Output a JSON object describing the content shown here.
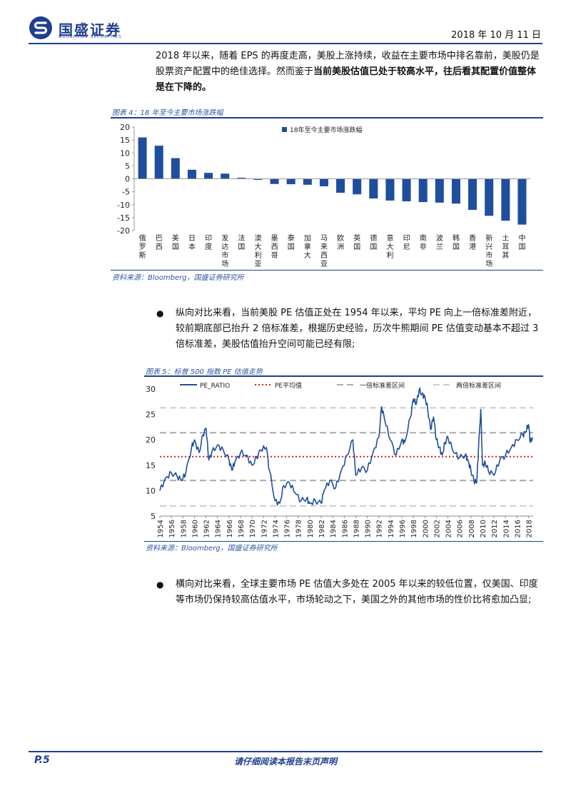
{
  "header": {
    "logo_name": "国盛证券",
    "logo_sub": "GUOSHENG SECURITIES",
    "date": "2018 年 10 月 11 日"
  },
  "paragraph1": {
    "normal": "2018 年以来，随着 EPS 的再度走高，美股上涨持续，收益在主要市场中排名靠前，美股仍是股票资产配置中的绝佳选择。然而鉴于",
    "bold": "当前美股估值已处于较高水平，往后看其配置价值整体是在下降的。"
  },
  "figure4": {
    "title": "图表 4：18 年至今主要市场涨跌幅",
    "source": "资料来源：Bloomberg，国盛证券研究所"
  },
  "bullet1": "纵向对比来看，当前美股 PE 估值正处在 1954 年以来，平均 PE 向上一倍标准差附近，较前期底部已抬升 2 倍标准差，根据历史经验，历次牛熊期间 PE 估值变动基本不超过 3 倍标准差，美股估值抬升空间可能已经有限;",
  "figure5": {
    "title": "图表 5：标普 500 指数 PE 估值走势",
    "source": "资料来源：Bloomberg，国盛证券研究所"
  },
  "bullet2": "横向对比来看，全球主要市场 PE 估值大多处在 2005 年以来的较低位置，仅美国、印度等市场仍保持较高估值水平，市场轮动之下，美国之外的其他市场的性价比将愈加凸显;",
  "footer": {
    "page": "P.5",
    "note": "请仔细阅读本报告末页声明"
  },
  "colors": {
    "brand": "#1f3f8f",
    "bar": "#1f4e9c",
    "mean_line": "#d32020",
    "band": "#aaaaaa"
  },
  "chart_data": [
    {
      "type": "bar",
      "legend": "18年至今主要市场涨跌幅",
      "categories": [
        "俄罗斯",
        "巴西",
        "美国",
        "日本",
        "印度",
        "发达市场",
        "法国",
        "澳大利亚",
        "墨西哥",
        "泰国",
        "加拿大",
        "马来西亚",
        "欧洲",
        "英国",
        "德国",
        "意大利",
        "印尼",
        "南非",
        "波兰",
        "韩国",
        "香港",
        "新兴市场",
        "土耳其",
        "中国"
      ],
      "values": [
        16.0,
        12.8,
        8.0,
        3.5,
        2.3,
        2.0,
        0.4,
        -0.4,
        -2.0,
        -2.1,
        -2.3,
        -2.9,
        -5.4,
        -6.0,
        -7.6,
        -8.4,
        -8.7,
        -9.0,
        -9.2,
        -9.6,
        -12.0,
        -14.3,
        -16.2,
        -17.7
      ],
      "ylim": [
        -20,
        20
      ],
      "yticks": [
        20,
        15,
        10,
        5,
        0,
        -5,
        -10,
        -15,
        -20
      ],
      "legend_position": "top"
    },
    {
      "type": "line",
      "legend": [
        {
          "name": "PE_RATIO",
          "style": "solid"
        },
        {
          "name": "PE平均值",
          "style": "dotted"
        },
        {
          "name": "一倍标准差区间",
          "style": "dashed"
        },
        {
          "name": "两倍标准差区间",
          "style": "dashed"
        }
      ],
      "xlim": [
        1954,
        2018.8
      ],
      "xticks": [
        1954,
        1956,
        1958,
        1960,
        1962,
        1964,
        1966,
        1968,
        1970,
        1972,
        1974,
        1976,
        1978,
        1980,
        1982,
        1984,
        1986,
        1988,
        1990,
        1992,
        1994,
        1996,
        1998,
        2000,
        2002,
        2004,
        2006,
        2008,
        2010,
        2012,
        2014,
        2016,
        2018
      ],
      "ylim": [
        5,
        30
      ],
      "yticks": [
        30,
        25,
        20,
        15,
        10,
        5
      ],
      "mean": 16.7,
      "one_std": [
        12.0,
        21.4
      ],
      "two_std": [
        7.0,
        26.3
      ],
      "series": [
        {
          "name": "PE_RATIO",
          "x": [
            1954.0,
            1955.0,
            1956.0,
            1957.0,
            1957.8,
            1958.5,
            1959.5,
            1960.0,
            1960.8,
            1961.5,
            1962.0,
            1962.5,
            1963.0,
            1964.0,
            1965.0,
            1966.0,
            1966.5,
            1967.0,
            1968.0,
            1969.0,
            1970.0,
            1970.8,
            1971.5,
            1972.5,
            1973.0,
            1974.0,
            1974.8,
            1975.5,
            1976.5,
            1977.5,
            1978.5,
            1979.5,
            1980.0,
            1981.0,
            1982.0,
            1982.5,
            1983.5,
            1984.5,
            1985.5,
            1986.5,
            1987.5,
            1988.0,
            1989.0,
            1990.0,
            1991.0,
            1992.0,
            1992.5,
            1993.0,
            1994.0,
            1995.0,
            1996.0,
            1996.5,
            1997.5,
            1998.0,
            1998.5,
            1999.0,
            1999.5,
            2000.0,
            2000.5,
            2001.0,
            2001.5,
            2002.0,
            2002.5,
            2003.0,
            2003.5,
            2004.0,
            2005.0,
            2006.0,
            2007.0,
            2007.5,
            2008.0,
            2008.5,
            2009.0,
            2009.3,
            2009.7,
            2010.0,
            2010.5,
            2011.0,
            2012.0,
            2013.0,
            2014.0,
            2015.0,
            2016.0,
            2017.0,
            2017.5,
            2018.0,
            2018.3,
            2018.7
          ],
          "y": [
            10.0,
            12.5,
            13.5,
            12.8,
            12.0,
            13.5,
            18.5,
            20.0,
            17.5,
            21.0,
            22.3,
            16.0,
            17.5,
            19.0,
            18.0,
            16.0,
            14.0,
            15.5,
            17.5,
            17.0,
            15.0,
            16.5,
            18.0,
            18.5,
            14.0,
            8.0,
            7.5,
            11.0,
            11.5,
            9.5,
            8.0,
            8.5,
            7.5,
            8.0,
            7.5,
            10.0,
            12.0,
            10.5,
            14.0,
            17.0,
            20.0,
            13.0,
            14.5,
            14.0,
            17.5,
            20.5,
            26.5,
            24.0,
            20.0,
            17.0,
            20.0,
            19.5,
            24.5,
            28.0,
            27.0,
            29.8,
            29.0,
            28.5,
            26.0,
            22.0,
            24.5,
            20.0,
            18.5,
            17.0,
            19.5,
            20.5,
            17.5,
            16.5,
            17.0,
            16.0,
            14.0,
            12.0,
            11.5,
            18.0,
            26.0,
            15.0,
            15.5,
            14.0,
            13.0,
            16.0,
            17.0,
            18.5,
            20.0,
            21.0,
            21.5,
            23.0,
            19.5,
            20.5
          ]
        }
      ]
    }
  ]
}
